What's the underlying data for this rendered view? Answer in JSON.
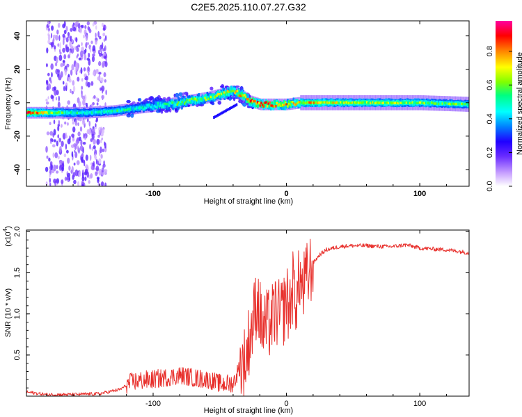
{
  "title": "C2E5.2025.110.07.27.G32",
  "chart_data": [
    {
      "type": "heatmap",
      "title": "C2E5.2025.110.07.27.G32",
      "xlabel": "Height of straight line (km)",
      "ylabel": "Frequency (Hz)",
      "xlim": [
        -195,
        137
      ],
      "ylim": [
        -50,
        49
      ],
      "xticks": [
        -100,
        0,
        100
      ],
      "yticks": [
        -40,
        -20,
        0,
        20,
        40
      ],
      "colorbar": {
        "label": "Normalized spectral amplitude",
        "range": [
          0.0,
          0.98
        ],
        "ticks": [
          0.0,
          0.2,
          0.4,
          0.6,
          0.8
        ],
        "colormap": [
          "#ffffff",
          "#a060ff",
          "#2000ff",
          "#0080ff",
          "#00ffff",
          "#00ff80",
          "#80ff00",
          "#ffff00",
          "#ff8000",
          "#ff0000",
          "#ff00a0"
        ]
      },
      "ridge": {
        "x": [
          -195,
          -170,
          -150,
          -130,
          -110,
          -90,
          -75,
          -60,
          -50,
          -40,
          -33,
          -28,
          -20,
          -10,
          0,
          10,
          20,
          50,
          100,
          137
        ],
        "frequency": [
          -6,
          -6,
          -6,
          -5,
          -3,
          -1,
          1,
          3,
          5,
          7,
          4,
          1,
          -1,
          -1,
          -1,
          0,
          0,
          0,
          0,
          -1
        ],
        "amplitude": [
          0.9,
          0.6,
          0.5,
          0.55,
          0.5,
          0.55,
          0.6,
          0.65,
          0.7,
          0.75,
          0.8,
          0.85,
          0.9,
          0.85,
          0.8,
          0.75,
          0.8,
          0.7,
          0.65,
          0.6
        ]
      },
      "noise_region": {
        "x": [
          -180,
          -135
        ],
        "frequency": [
          -50,
          49
        ]
      }
    },
    {
      "type": "line",
      "xlabel": "Height of straight line (km)",
      "ylabel": "SNR (10 * v/v)",
      "scale_label": "(x10",
      "scale_exponent": "4",
      "xlim": [
        -195,
        137
      ],
      "ylim": [
        0.0,
        2.02
      ],
      "xticks": [
        -100,
        0,
        100
      ],
      "yticks": [
        0.5,
        1.0,
        1.5,
        2.0
      ],
      "ytick_labels": [
        "0.5",
        "1.0",
        "1.5",
        "2.0"
      ],
      "series": [
        {
          "name": "SNR",
          "color": "#e8302c",
          "x": [
            -195,
            -180,
            -160,
            -140,
            -125,
            -115,
            -100,
            -90,
            -80,
            -70,
            -60,
            -50,
            -40,
            -35,
            -30,
            -28,
            -25,
            -22,
            -20,
            -18,
            -15,
            -12,
            -10,
            -8,
            -5,
            -2,
            0,
            2,
            5,
            8,
            10,
            12,
            14,
            16,
            18,
            20,
            25,
            30,
            40,
            50,
            60,
            70,
            80,
            90,
            100,
            110,
            120,
            130,
            137
          ],
          "values": [
            0.05,
            0.02,
            0.02,
            0.03,
            0.08,
            0.18,
            0.2,
            0.22,
            0.25,
            0.22,
            0.2,
            0.15,
            0.15,
            0.35,
            0.45,
            0.7,
            0.9,
            1.2,
            1.0,
            0.8,
            0.85,
            0.9,
            0.95,
            1.05,
            0.95,
            1.05,
            1.2,
            1.05,
            1.35,
            1.15,
            1.5,
            1.25,
            1.4,
            1.45,
            1.55,
            1.62,
            1.72,
            1.78,
            1.82,
            1.83,
            1.83,
            1.82,
            1.82,
            1.84,
            1.8,
            1.79,
            1.78,
            1.76,
            1.74
          ]
        }
      ]
    }
  ]
}
